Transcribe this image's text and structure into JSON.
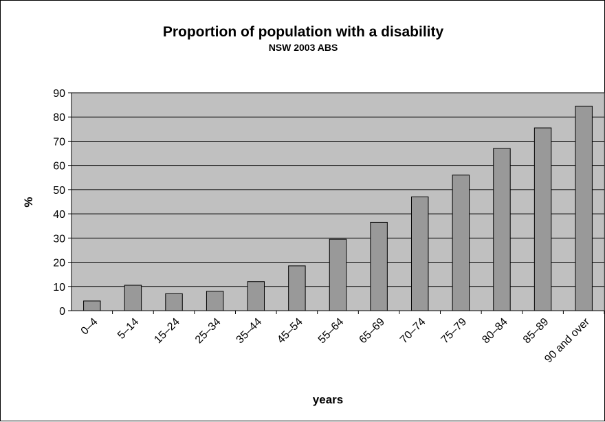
{
  "chart_data": {
    "type": "bar",
    "title": "Proportion of population with a disability",
    "subtitle": "NSW 2003 ABS",
    "xlabel": "years",
    "ylabel": "%",
    "ylim": [
      0,
      90
    ],
    "yticks": [
      0,
      10,
      20,
      30,
      40,
      50,
      60,
      70,
      80,
      90
    ],
    "grid": true,
    "categories": [
      "0–4",
      "5–14",
      "15–24",
      "25–34",
      "35–44",
      "45–54",
      "55–64",
      "65–69",
      "70–74",
      "75–79",
      "80–84",
      "85–89",
      "90 and over"
    ],
    "values": [
      4,
      10.5,
      7,
      8,
      12,
      18.5,
      29.5,
      36.5,
      47,
      56,
      67,
      75.5,
      84.5
    ],
    "colors": {
      "plot_background": "#c0c0c0",
      "bar_fill": "#999999",
      "bar_stroke": "#000000",
      "grid": "#000000"
    }
  }
}
